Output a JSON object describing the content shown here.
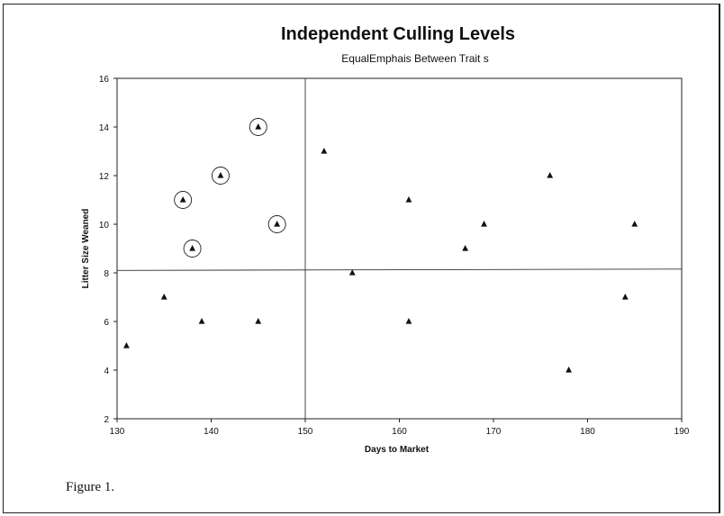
{
  "chart_data": {
    "type": "scatter",
    "title": "Independent Culling Levels",
    "subtitle": "EqualEmphais Between Trait  s",
    "xlabel": "Days to Market",
    "ylabel": "Litter Size Weaned",
    "xlim": [
      130,
      190
    ],
    "ylim": [
      2,
      16
    ],
    "xticks": [
      "130",
      "140",
      "150",
      "160",
      "170",
      "180",
      "190"
    ],
    "yticks": [
      "2",
      "4",
      "6",
      "8",
      "10",
      "12",
      "14",
      "16"
    ],
    "grid": false,
    "cutoffs": {
      "x": 150,
      "y": 8.1
    },
    "points": [
      {
        "x": 131,
        "y": 5,
        "circled": false
      },
      {
        "x": 135,
        "y": 7,
        "circled": false
      },
      {
        "x": 137,
        "y": 11,
        "circled": true
      },
      {
        "x": 138,
        "y": 9,
        "circled": true
      },
      {
        "x": 139,
        "y": 6,
        "circled": false
      },
      {
        "x": 141,
        "y": 12,
        "circled": true
      },
      {
        "x": 145,
        "y": 14,
        "circled": true
      },
      {
        "x": 145,
        "y": 6,
        "circled": false
      },
      {
        "x": 147,
        "y": 10,
        "circled": true
      },
      {
        "x": 152,
        "y": 13,
        "circled": false
      },
      {
        "x": 155,
        "y": 8,
        "circled": false
      },
      {
        "x": 161,
        "y": 11,
        "circled": false
      },
      {
        "x": 161,
        "y": 6,
        "circled": false
      },
      {
        "x": 167,
        "y": 9,
        "circled": false
      },
      {
        "x": 169,
        "y": 10,
        "circled": false
      },
      {
        "x": 176,
        "y": 12,
        "circled": false
      },
      {
        "x": 178,
        "y": 4,
        "circled": false
      },
      {
        "x": 184,
        "y": 7,
        "circled": false
      },
      {
        "x": 185,
        "y": 10,
        "circled": false
      }
    ]
  },
  "caption": "Figure 1."
}
